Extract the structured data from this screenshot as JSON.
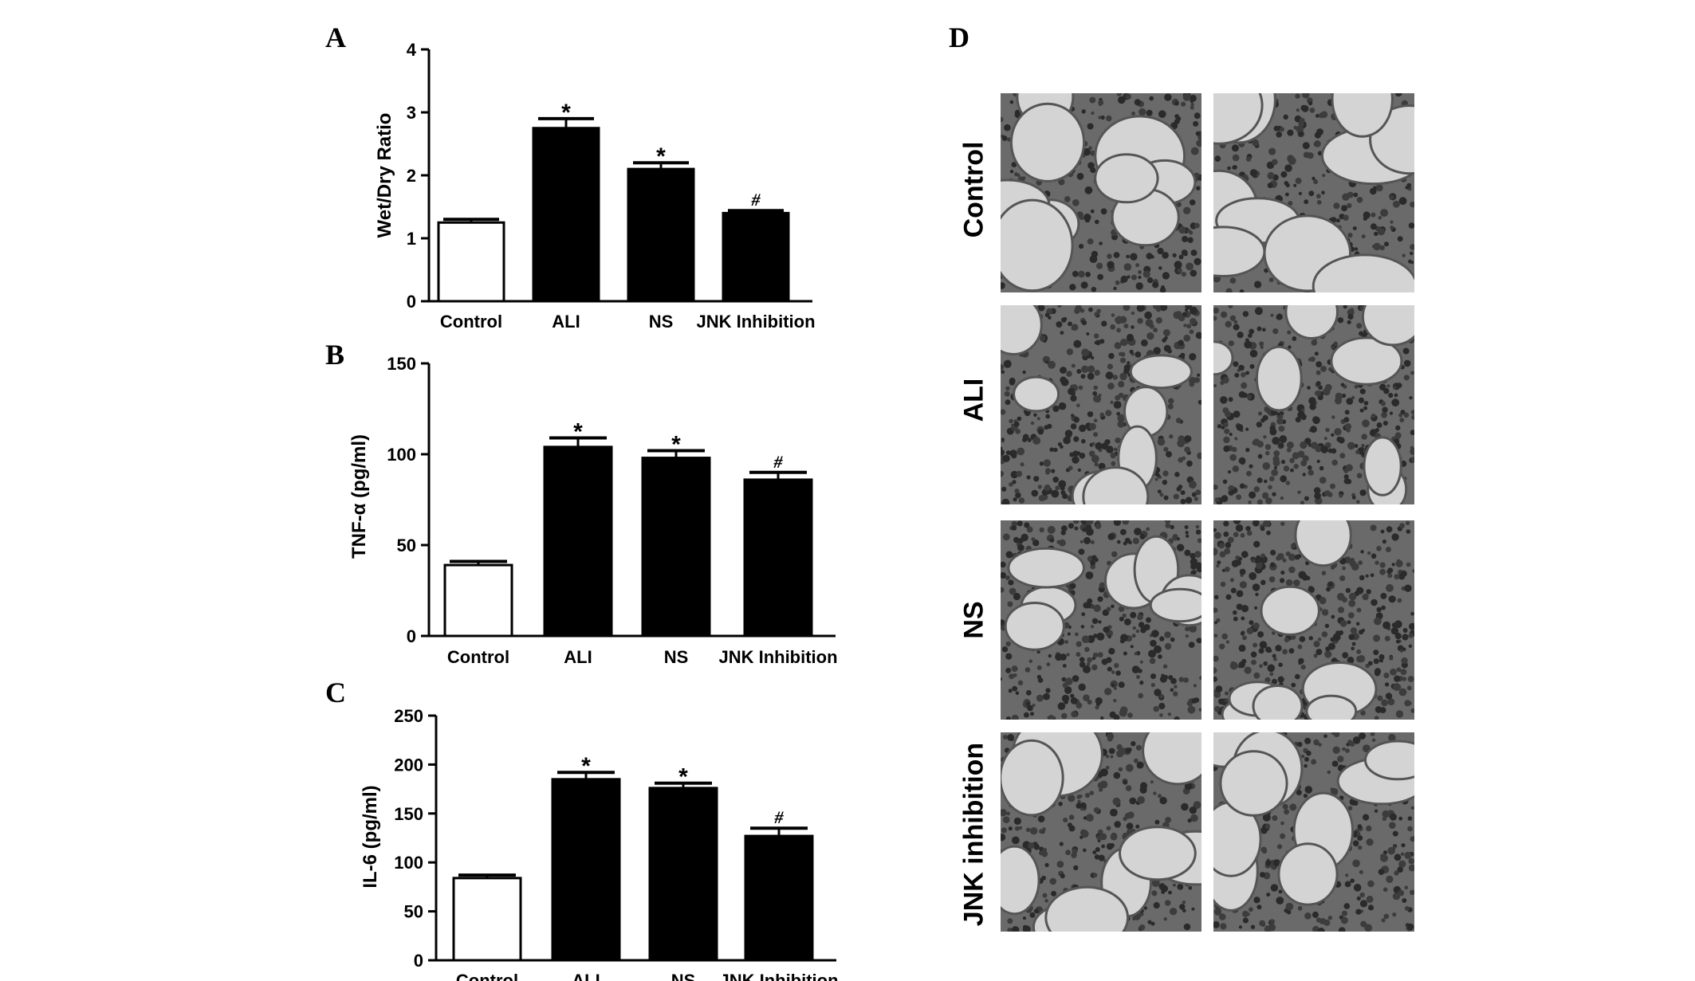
{
  "panels": {
    "a": "A",
    "b": "B",
    "c": "C",
    "d": "D"
  },
  "chart_data": [
    {
      "type": "bar",
      "panel": "A",
      "categories": [
        "Control",
        "ALI",
        "NS",
        "JNK Inhibition"
      ],
      "values": [
        1.25,
        2.75,
        2.1,
        1.4
      ],
      "errors": [
        0.05,
        0.15,
        0.1,
        0.04
      ],
      "fills": [
        "#ffffff",
        "#000000",
        "#000000",
        "#000000"
      ],
      "markers": [
        "",
        "*",
        "*",
        "#"
      ],
      "ylabel": "Wet/Dry Ratio",
      "ylim": [
        0,
        4
      ],
      "yticks": [
        "0",
        "1",
        "2",
        "3",
        "4"
      ]
    },
    {
      "type": "bar",
      "panel": "B",
      "categories": [
        "Control",
        "ALI",
        "NS",
        "JNK Inhibition"
      ],
      "values": [
        39,
        104,
        98,
        86
      ],
      "errors": [
        2,
        5,
        4,
        4
      ],
      "fills": [
        "#ffffff",
        "#000000",
        "#000000",
        "#000000"
      ],
      "markers": [
        "",
        "*",
        "*",
        "#"
      ],
      "ylabel": "TNF-α  (pg/ml)",
      "ylim": [
        0,
        150
      ],
      "yticks": [
        "0",
        "50",
        "100",
        "150"
      ]
    },
    {
      "type": "bar",
      "panel": "C",
      "categories": [
        "Control",
        "ALI",
        "NS",
        "JNK Inhibition"
      ],
      "values": [
        84,
        185,
        176,
        127
      ],
      "errors": [
        3,
        7,
        5,
        8
      ],
      "fills": [
        "#ffffff",
        "#000000",
        "#000000",
        "#000000"
      ],
      "markers": [
        "",
        "*",
        "*",
        "#"
      ],
      "ylabel": "IL-6  (pg/ml)",
      "ylim": [
        0,
        250
      ],
      "yticks": [
        "0",
        "50",
        "100",
        "150",
        "200",
        "250"
      ]
    }
  ],
  "histology": {
    "rows": [
      {
        "label": "Control",
        "density": 0.35
      },
      {
        "label": "ALI",
        "density": 0.75
      },
      {
        "label": "NS",
        "density": 0.7
      },
      {
        "label": "JNK inhibition",
        "density": 0.5
      }
    ]
  }
}
